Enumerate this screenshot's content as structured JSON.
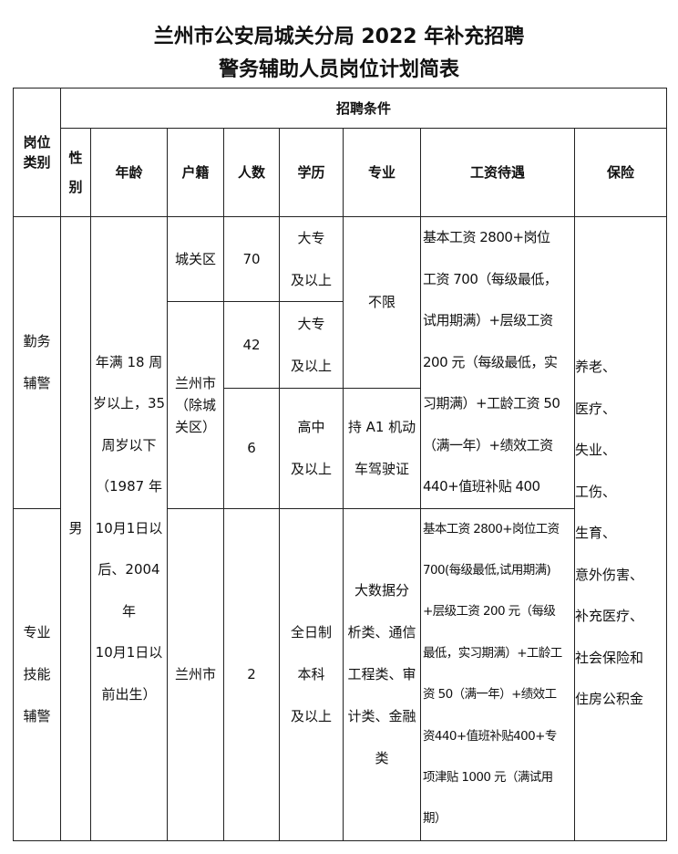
{
  "title": {
    "line1": "兰州市公安局城关分局 2022 年补充招聘",
    "line2": "警务辅助人员岗位计划简表"
  },
  "headers": {
    "category": "岗位\n类别",
    "conditions": "招聘条件",
    "gender": "性\n别",
    "age": "年龄",
    "hukou": "户籍",
    "count": "人数",
    "education": "学历",
    "major": "专业",
    "salary": "工资待遇",
    "insurance": "保险"
  },
  "rows": {
    "cat1": "勤务\n辅警",
    "cat2": "专业\n技能\n辅警",
    "gender": "男",
    "age": "年满 18 周\n岁以上，35\n周岁以下\n（1987 年\n10月1日以\n后、2004 年\n10月1日以\n前出生）",
    "hukou1": "城关区",
    "count1": "70",
    "edu1": "大专\n及以上",
    "hukou2": "兰州市\n（除城\n关区）",
    "count2": "42",
    "edu2": "大专\n及以上",
    "count3": "6",
    "edu3": "高中\n及以上",
    "major1": "不限",
    "major3": "持 A1 机动\n车驾驶证",
    "salary1": "基本工资 2800+岗位\n工资 700（每级最低，\n试用期满）+层级工资\n200 元（每级最低，实\n习期满）+工龄工资 50\n（满一年）+绩效工资\n440+值班补贴 400",
    "hukou4": "兰州市",
    "count4": "2",
    "edu4": "全日制\n本科\n及以上",
    "major4": "大数据分\n析类、通信\n工程类、审\n计类、金融\n类",
    "salary4": "基本工资 2800+岗位工资\n700(每级最低,试用期满)\n+层级工资 200 元（每级\n最低，实习期满）+工龄工\n资 50（满一年）+绩效工\n资440+值班补贴400+专\n项津贴 1000 元（满试用\n期）",
    "insurance": "养老、\n医疗、\n失业、\n工伤、\n生育、\n意外伤害、\n补充医疗、\n社会保险和\n住房公积金"
  }
}
